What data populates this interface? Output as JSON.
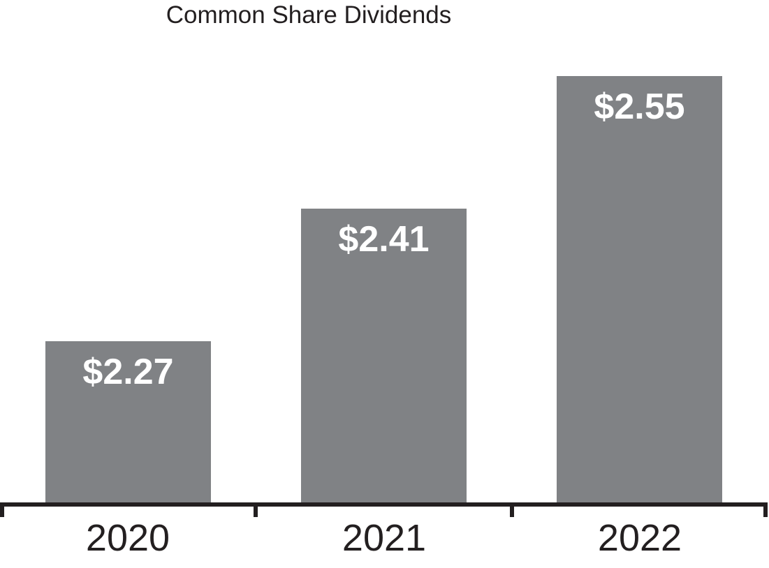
{
  "title": "Common Share Dividends",
  "colors": {
    "bar": "#808285",
    "axis": "#231F20",
    "bar_label_text": "#FFFFFF",
    "title_text": "#231F20",
    "background": "#FFFFFF"
  },
  "chart_data": {
    "type": "bar",
    "title": "Common Share Dividends",
    "categories": [
      "2020",
      "2021",
      "2022"
    ],
    "values": [
      2.27,
      2.41,
      2.55
    ],
    "value_labels": [
      "$2.27",
      "$2.41",
      "$2.55"
    ],
    "xlabel": "",
    "ylabel": "",
    "ylim": [
      2.1,
      2.63
    ],
    "grid": false,
    "legend": false,
    "y_axis_shown": false,
    "bar_label_position": "inside-top"
  }
}
